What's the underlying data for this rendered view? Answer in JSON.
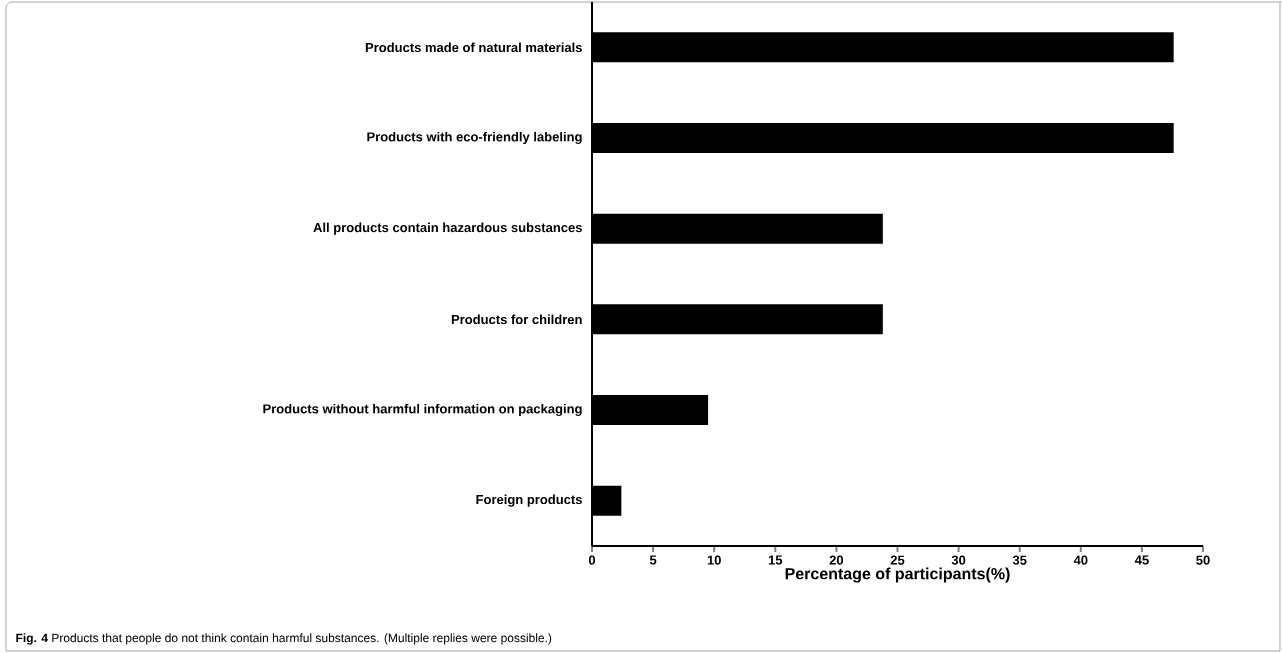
{
  "chart_data": {
    "type": "bar",
    "orientation": "horizontal",
    "categories": [
      "Products made of natural materials",
      "Products with eco-friendly labeling",
      "All products contain hazardous substances",
      "Products for children",
      "Products without harmful information on packaging",
      "Foreign products"
    ],
    "values": [
      47.6,
      47.6,
      23.8,
      23.8,
      9.5,
      2.4
    ],
    "color": "#000000",
    "xlim": [
      0,
      50
    ],
    "xticks": [
      0,
      5,
      10,
      15,
      20,
      25,
      30,
      35,
      40,
      45,
      50
    ],
    "xlabel": "Percentage of participants(%)",
    "annotations": [
      "**Fig. 4** Products that people do not think contain harmful substances. (Multiple replies were possible.)"
    ]
  }
}
